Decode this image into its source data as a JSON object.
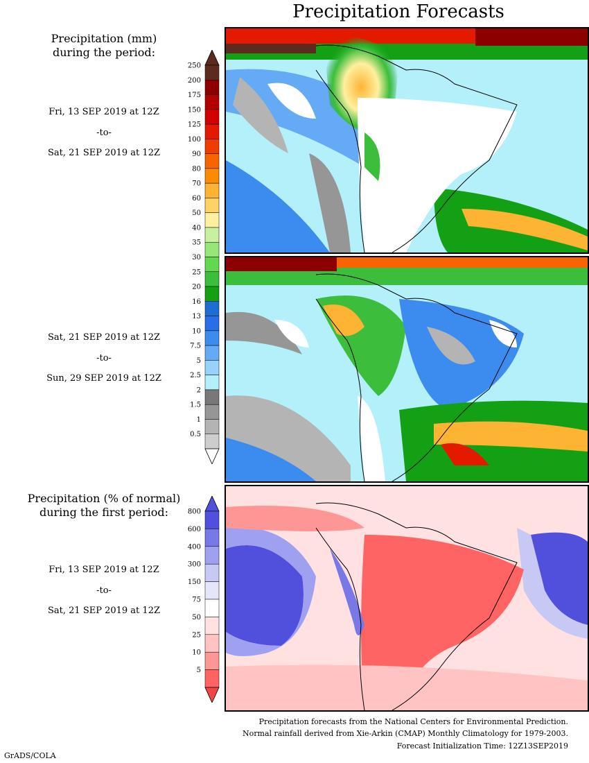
{
  "title": "Precipitation Forecasts",
  "panel1": {
    "heading": [
      "Precipitation (mm)",
      "during the period:"
    ],
    "start": "Fri, 13 SEP 2019 at 12Z",
    "to": "-to-",
    "end": "Sat, 21 SEP 2019 at 12Z"
  },
  "panel2": {
    "start": "Sat, 21 SEP 2019 at 12Z",
    "to": "-to-",
    "end": "Sun, 29 SEP 2019 at 12Z"
  },
  "panel3": {
    "heading": [
      "Precipitation (% of normal)",
      "during the first period:"
    ],
    "start": "Fri, 13 SEP 2019 at 12Z",
    "to": "-to-",
    "end": "Sat, 21 SEP 2019 at 12Z"
  },
  "precip_scale": {
    "labels": [
      "250",
      "200",
      "175",
      "150",
      "125",
      "100",
      "90",
      "80",
      "70",
      "60",
      "50",
      "40",
      "35",
      "30",
      "25",
      "20",
      "16",
      "13",
      "10",
      "7.5",
      "5",
      "2.5",
      "2",
      "1.5",
      "1",
      "0.5"
    ],
    "colors": [
      "#5c2a1e",
      "#8c0000",
      "#b40000",
      "#d20000",
      "#e41a00",
      "#f03c00",
      "#f86400",
      "#fb8c00",
      "#fdb432",
      "#fed264",
      "#fef0a0",
      "#c8f0a0",
      "#96e678",
      "#64d750",
      "#3cbe3c",
      "#14a014",
      "#1e6ed2",
      "#286ee6",
      "#3c8cf0",
      "#64aaf5",
      "#96d2fa",
      "#b4f0fa",
      "#787878",
      "#969696",
      "#b4b4b4",
      "#cdcdcd"
    ],
    "top_cap": "#5c2a1e",
    "bottom_cap": "#ffffff"
  },
  "percent_scale": {
    "labels": [
      "800",
      "600",
      "400",
      "300",
      "150",
      "75",
      "50",
      "25",
      "10",
      "5"
    ],
    "colors": [
      "#5050dc",
      "#7878e6",
      "#a0a0f0",
      "#c8c8f5",
      "#e6e6fa",
      "#ffffff",
      "#ffe1e1",
      "#ffc3c3",
      "#ff9696",
      "#ff6464"
    ],
    "top_cap": "#5050dc",
    "bottom_cap": "#f04646"
  },
  "footer": {
    "line1": "Precipitation forecasts from the National Centers for Environmental Prediction.",
    "line2": "Normal rainfall derived from Xie-Arkin (CMAP) Monthly Climatology for 1979-2003.",
    "line3": "Forecast Initialization Time: 12Z13SEP2019"
  },
  "credit": "GrADS/COLA"
}
